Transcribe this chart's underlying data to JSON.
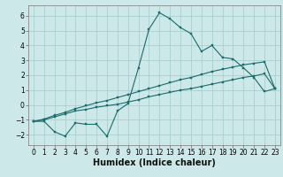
{
  "bg_color": "#cce8e8",
  "grid_color": "#aacfcf",
  "line_color": "#1a6b6b",
  "marker_color": "#1a6b6b",
  "xlabel": "Humidex (Indice chaleur)",
  "xlim": [
    -0.5,
    23.5
  ],
  "ylim": [
    -2.7,
    6.7
  ],
  "yticks": [
    -2,
    -1,
    0,
    1,
    2,
    3,
    4,
    5,
    6
  ],
  "xticks": [
    0,
    1,
    2,
    3,
    4,
    5,
    6,
    7,
    8,
    9,
    10,
    11,
    12,
    13,
    14,
    15,
    16,
    17,
    18,
    19,
    20,
    21,
    22,
    23
  ],
  "series1_x": [
    0,
    1,
    2,
    3,
    4,
    5,
    6,
    7,
    8,
    9,
    10,
    11,
    12,
    13,
    14,
    15,
    16,
    17,
    18,
    19,
    20,
    21,
    22,
    23
  ],
  "series1_y": [
    -1.1,
    -1.1,
    -1.8,
    -2.1,
    -1.2,
    -1.3,
    -1.3,
    -2.1,
    -0.4,
    0.1,
    2.5,
    5.1,
    6.2,
    5.8,
    5.2,
    4.8,
    3.6,
    4.0,
    3.2,
    3.1,
    2.5,
    1.85,
    0.9,
    1.1
  ],
  "series2_x": [
    0,
    1,
    2,
    3,
    4,
    5,
    6,
    7,
    8,
    9,
    10,
    11,
    12,
    13,
    14,
    15,
    16,
    17,
    18,
    19,
    20,
    21,
    22,
    23
  ],
  "series2_y": [
    -1.1,
    -1.0,
    -0.8,
    -0.6,
    -0.4,
    -0.3,
    -0.15,
    -0.05,
    0.05,
    0.2,
    0.35,
    0.55,
    0.7,
    0.85,
    1.0,
    1.1,
    1.25,
    1.4,
    1.55,
    1.7,
    1.85,
    1.95,
    2.1,
    1.1
  ],
  "series3_x": [
    0,
    1,
    2,
    3,
    4,
    5,
    6,
    7,
    8,
    9,
    10,
    11,
    12,
    13,
    14,
    15,
    16,
    17,
    18,
    19,
    20,
    21,
    22,
    23
  ],
  "series3_y": [
    -1.1,
    -0.95,
    -0.7,
    -0.5,
    -0.25,
    -0.05,
    0.15,
    0.3,
    0.5,
    0.7,
    0.9,
    1.1,
    1.3,
    1.5,
    1.7,
    1.85,
    2.05,
    2.25,
    2.4,
    2.55,
    2.7,
    2.8,
    2.9,
    1.1
  ],
  "xlabel_fontsize": 7,
  "tick_fontsize": 5.5
}
